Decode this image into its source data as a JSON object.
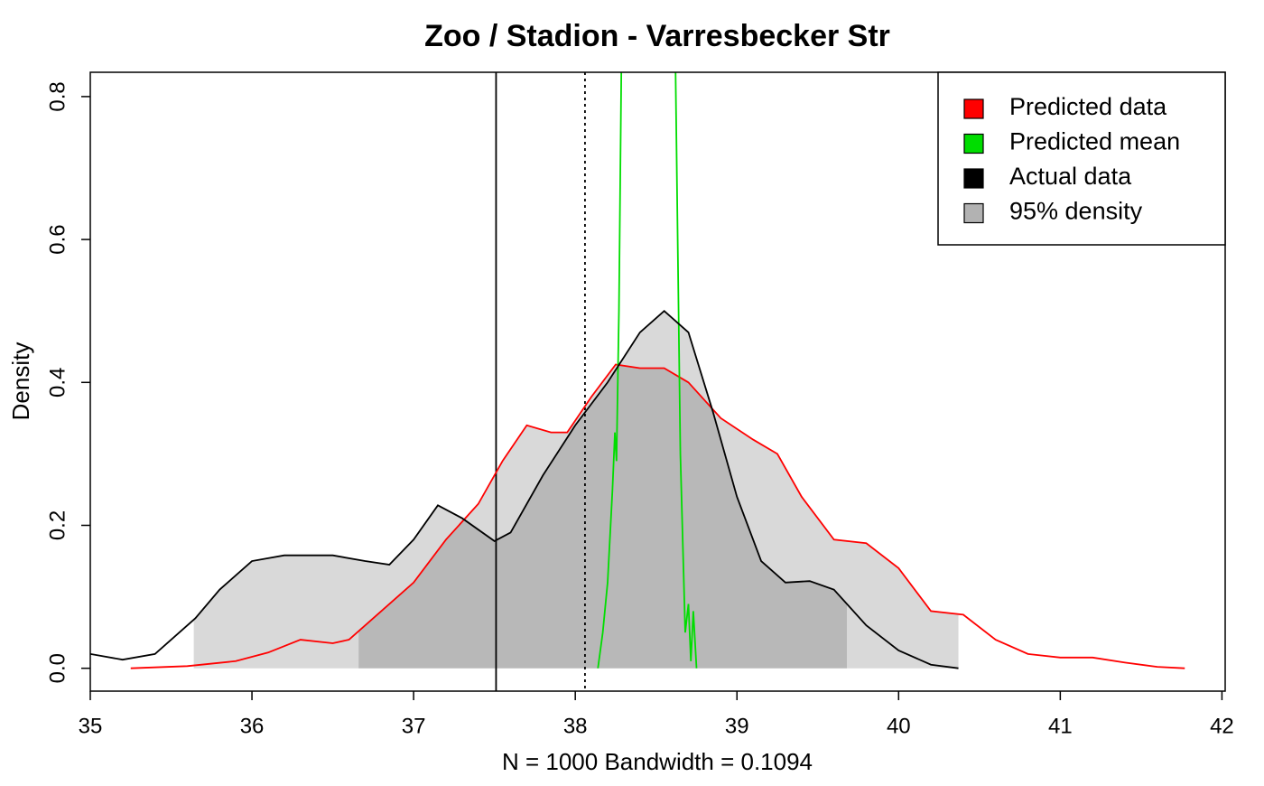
{
  "chart_data": {
    "type": "density",
    "title": "Zoo / Stadion - Varresbecker Str",
    "xlabel": "N = 1000   Bandwidth = 0.1094",
    "ylabel": "Density",
    "xlim": [
      35,
      42.02
    ],
    "ylim": [
      -0.032,
      0.834
    ],
    "xticks": [
      35,
      36,
      37,
      38,
      39,
      40,
      41,
      42
    ],
    "yticks": [
      {
        "value": 0,
        "label": "0.0"
      },
      0.2,
      0.4,
      0.6,
      0.8
    ],
    "series": [
      {
        "name": "Predicted data",
        "color": "#ff0000",
        "interval": [
          36.66,
          40.37
        ],
        "x": [
          35.25,
          35.6,
          35.9,
          36.1,
          36.3,
          36.5,
          36.6,
          36.8,
          37.0,
          37.2,
          37.4,
          37.55,
          37.7,
          37.85,
          37.95,
          38.1,
          38.25,
          38.4,
          38.55,
          38.7,
          38.9,
          39.1,
          39.25,
          39.4,
          39.6,
          39.8,
          40.0,
          40.2,
          40.4,
          40.6,
          40.8,
          41.0,
          41.2,
          41.4,
          41.6,
          41.77
        ],
        "values": [
          0,
          0.003,
          0.01,
          0.022,
          0.04,
          0.035,
          0.04,
          0.08,
          0.12,
          0.18,
          0.23,
          0.29,
          0.34,
          0.33,
          0.33,
          0.38,
          0.425,
          0.42,
          0.42,
          0.4,
          0.35,
          0.32,
          0.3,
          0.24,
          0.18,
          0.175,
          0.14,
          0.08,
          0.075,
          0.04,
          0.02,
          0.015,
          0.015,
          0.008,
          0.002,
          0
        ]
      },
      {
        "name": "Predicted mean",
        "color": "#00dd00",
        "x": [
          38.14,
          38.17,
          38.2,
          38.23,
          38.245,
          38.255,
          38.27,
          38.285,
          38.3,
          38.45,
          38.6,
          38.62,
          38.65,
          38.68,
          38.7,
          38.715,
          38.73,
          38.75
        ],
        "values": [
          0,
          0.05,
          0.12,
          0.25,
          0.33,
          0.29,
          0.5,
          0.84,
          1.5,
          2.6,
          1.5,
          0.84,
          0.3,
          0.05,
          0.09,
          0.01,
          0.08,
          0
        ]
      },
      {
        "name": "Actual data",
        "color": "#000000",
        "interval": [
          35.64,
          39.68
        ],
        "x": [
          35.0,
          35.2,
          35.4,
          35.65,
          35.8,
          36.0,
          36.2,
          36.5,
          36.7,
          36.85,
          37.0,
          37.15,
          37.3,
          37.5,
          37.6,
          37.8,
          38.0,
          38.2,
          38.4,
          38.55,
          38.7,
          38.85,
          39.0,
          39.15,
          39.3,
          39.45,
          39.6,
          39.8,
          40.0,
          40.2,
          40.37
        ],
        "values": [
          0.02,
          0.012,
          0.02,
          0.07,
          0.11,
          0.15,
          0.158,
          0.158,
          0.15,
          0.145,
          0.18,
          0.228,
          0.21,
          0.178,
          0.19,
          0.27,
          0.34,
          0.4,
          0.47,
          0.5,
          0.47,
          0.36,
          0.24,
          0.15,
          0.12,
          0.122,
          0.11,
          0.06,
          0.025,
          0.005,
          0
        ]
      }
    ],
    "shade": {
      "name": "95% density",
      "color": "#000000",
      "opacity": 0.15
    },
    "vlines": [
      {
        "x": 37.51,
        "style": "solid"
      },
      {
        "x": 38.06,
        "style": "dotted"
      }
    ]
  }
}
